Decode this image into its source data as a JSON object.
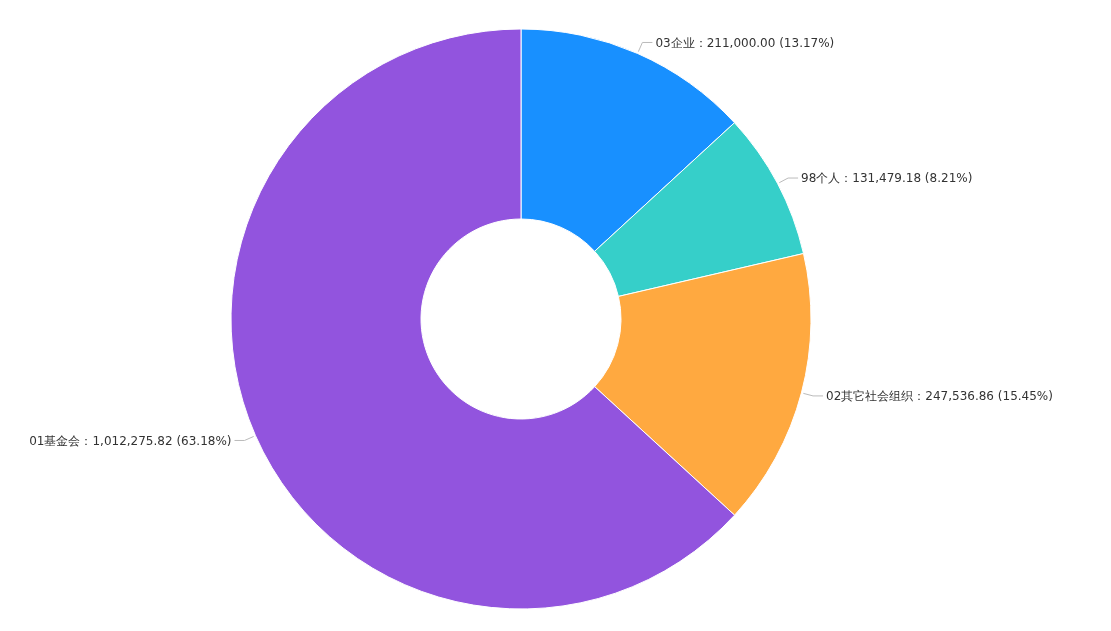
{
  "chart_data": {
    "type": "donut",
    "categories": [
      "03企业",
      "98个人",
      "02其它社会组织",
      "01基金会"
    ],
    "values": [
      211000.0,
      131479.18,
      247536.86,
      1012275.82
    ],
    "colors": [
      "#1890ff",
      "#36cfc9",
      "#ffa940",
      "#9254de"
    ],
    "value_labels": [
      "211,000.00 (13.17%)",
      "131,479.18 (8.21%)",
      "247,536.86 (15.45%)",
      "1,012,275.82 (63.18%)"
    ]
  }
}
